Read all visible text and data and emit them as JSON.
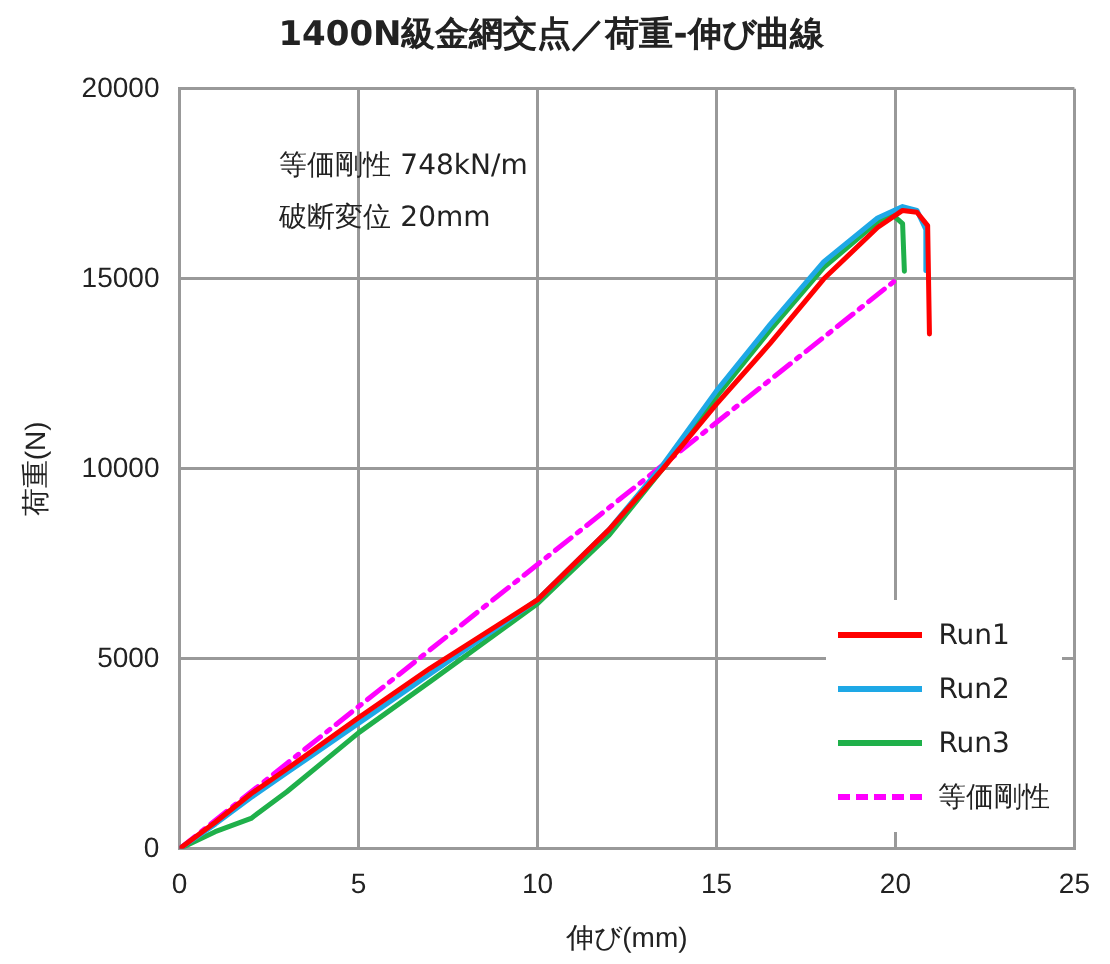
{
  "chart_data": {
    "type": "line",
    "title": "1400N級金網交点／荷重-伸び曲線",
    "xlabel": "伸び(mm)",
    "ylabel": "荷重(N)",
    "annotations": [
      "等価剛性 748kN/m",
      "破断変位 20mm"
    ],
    "xlim": [
      0,
      25
    ],
    "xticks": [
      0,
      5,
      10,
      15,
      20,
      25
    ],
    "ylim": [
      0,
      20000
    ],
    "yticks": [
      0,
      5000,
      10000,
      15000,
      20000
    ],
    "grid": true,
    "legend": "bottom right",
    "marker": "none",
    "series": [
      {
        "name": "Run1",
        "color": "#ff0000",
        "x": [
          0,
          1,
          2,
          3,
          5,
          7,
          10,
          12,
          13.5,
          15,
          16.5,
          18,
          19.5,
          20.2,
          20.6,
          20.9,
          20.95
        ],
        "values": [
          0,
          700,
          1450,
          2100,
          3450,
          4750,
          6550,
          8400,
          10000,
          11700,
          13300,
          15000,
          16350,
          16800,
          16750,
          16400,
          13550
        ]
      },
      {
        "name": "Run2",
        "color": "#1ea8e6",
        "x": [
          0,
          1,
          2,
          3,
          5,
          7,
          10,
          12,
          13.5,
          15,
          16.5,
          18,
          19.5,
          20.2,
          20.6,
          20.85,
          20.85
        ],
        "values": [
          0,
          650,
          1350,
          2000,
          3300,
          4600,
          6550,
          8400,
          10100,
          12050,
          13800,
          15450,
          16600,
          16900,
          16800,
          16300,
          15220
        ]
      },
      {
        "name": "Run3",
        "color": "#1fb04a",
        "x": [
          0,
          1,
          2,
          3,
          5,
          7,
          10,
          12,
          13.5,
          15,
          16.5,
          18,
          19.5,
          19.9,
          20.2,
          20.25
        ],
        "values": [
          0,
          450,
          800,
          1500,
          3050,
          4400,
          6450,
          8250,
          10000,
          11900,
          13650,
          15300,
          16500,
          16700,
          16450,
          15200
        ]
      },
      {
        "name": "等価剛性",
        "color": "#ff00ff",
        "line_style": "dashed",
        "x": [
          0,
          20
        ],
        "values": [
          0,
          14960
        ]
      }
    ]
  }
}
